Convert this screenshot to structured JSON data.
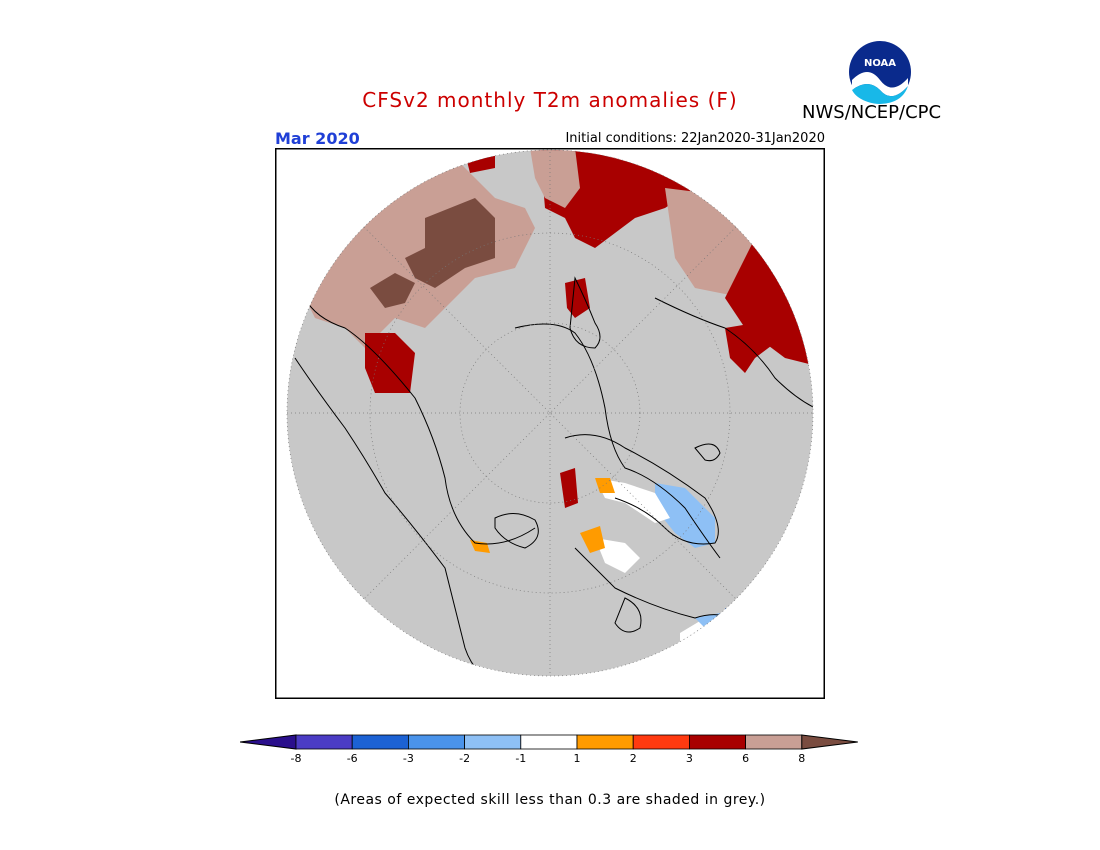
{
  "title": "CFSv2 monthly T2m anomalies (F)",
  "agency": "NWS/NCEP/CPC",
  "logo_text": "NOAA",
  "period": "Mar 2020",
  "initial_conditions": "Initial conditions: 22Jan2020-31Jan2020",
  "skill_note": "(Areas of expected skill less than 0.3 are shaded in grey.)",
  "colors": {
    "title": "#cc0000",
    "period": "#1f3fd6",
    "map_background": "#c8c8c8",
    "coast": "#000000"
  },
  "legend": {
    "ticks": [
      "-8",
      "-6",
      "-3",
      "-2",
      "-1",
      "1",
      "2",
      "3",
      "6",
      "8"
    ],
    "bins": [
      {
        "label": "< -8",
        "color": "#2a0f8c"
      },
      {
        "label": "-8 to -6",
        "color": "#4b3cc4"
      },
      {
        "label": "-6 to -3",
        "color": "#1c62d4"
      },
      {
        "label": "-3 to -2",
        "color": "#4a93ea"
      },
      {
        "label": "-2 to -1",
        "color": "#8ec0f5"
      },
      {
        "label": "-1 to 1",
        "color": "#ffffff"
      },
      {
        "label": "1 to 2",
        "color": "#ff9b00"
      },
      {
        "label": "2 to 3",
        "color": "#ff3a10"
      },
      {
        "label": "3 to 6",
        "color": "#a80000"
      },
      {
        "label": "6 to 8",
        "color": "#c99f95"
      },
      {
        "label": "> 8",
        "color": "#7a4c40"
      }
    ]
  }
}
